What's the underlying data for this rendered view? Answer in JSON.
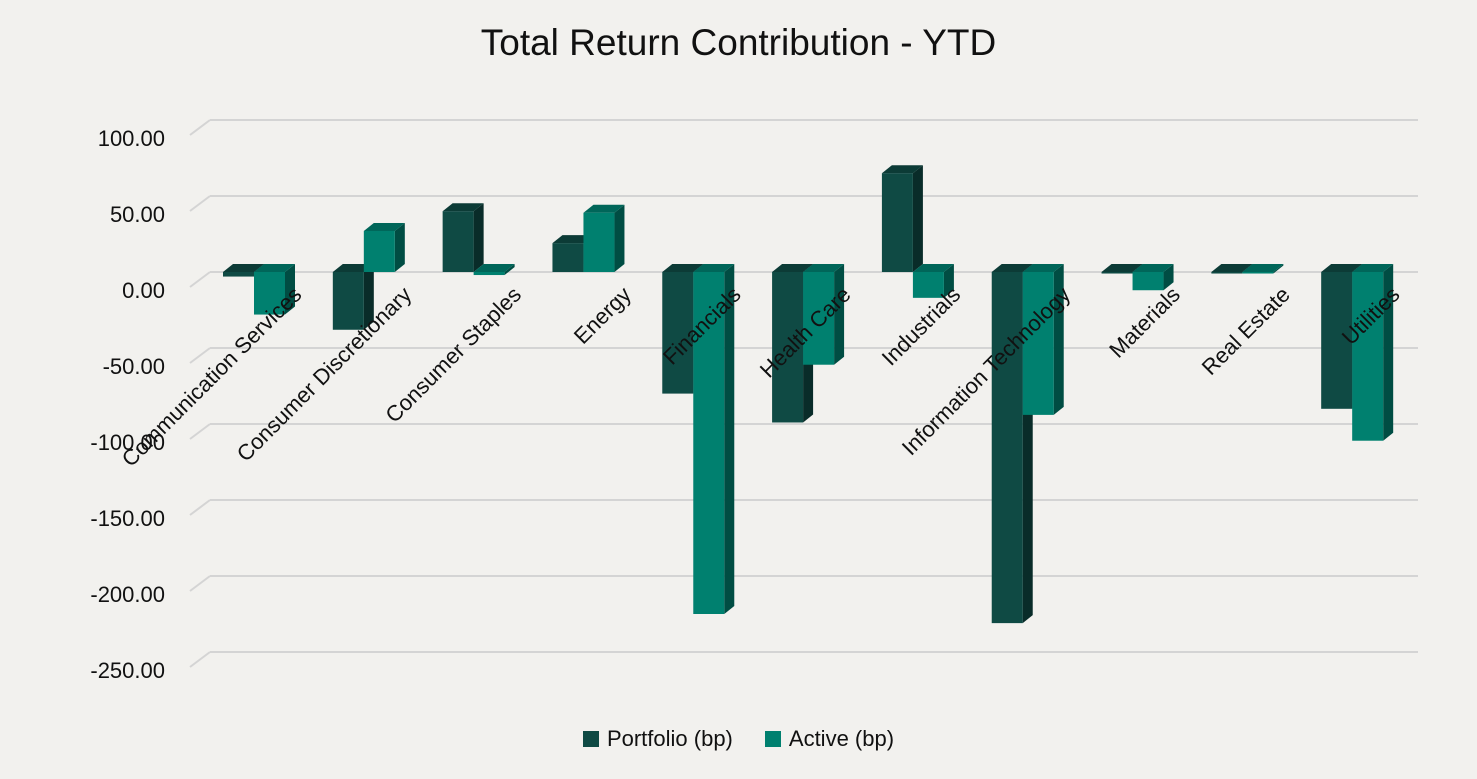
{
  "chart_data": {
    "type": "bar",
    "title": "Total Return Contribution - YTD",
    "xlabel": "",
    "ylabel": "",
    "ylim": [
      -250,
      100
    ],
    "y_ticks": [
      100,
      50,
      0,
      -50,
      -100,
      -150,
      -200,
      -250
    ],
    "y_tick_labels": [
      "100.00",
      "50.00",
      "0.00",
      "-50.00",
      "-100.00",
      "-150.00",
      "-200.00",
      "-250.00"
    ],
    "grid": true,
    "legend_position": "bottom",
    "categories": [
      "Communication Services",
      "Consumer Discretionary",
      "Consumer Staples",
      "Energy",
      "Financials",
      "Health Care",
      "Industrials",
      "Information Technology",
      "Materials",
      "Real Estate",
      "Utilities"
    ],
    "series": [
      {
        "name": "Portfolio (bp)",
        "color": "#0f4a44",
        "values": [
          -3,
          -38,
          40,
          19,
          -80,
          -99,
          65,
          -231,
          -1,
          -1,
          -90
        ]
      },
      {
        "name": "Active (bp)",
        "color": "#00806f",
        "values": [
          -28,
          27,
          -2,
          39,
          -225,
          -61,
          -17,
          -94,
          -12,
          -1,
          -111
        ]
      }
    ]
  }
}
